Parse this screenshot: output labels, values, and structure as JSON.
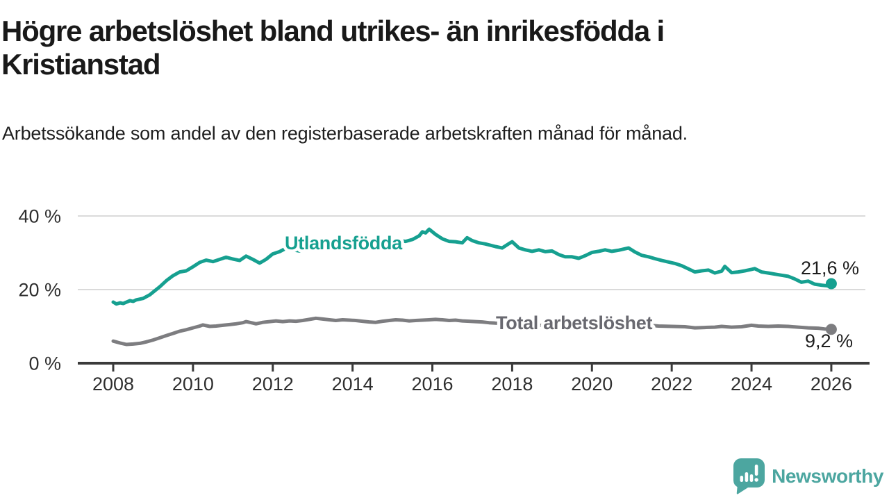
{
  "header": {
    "title": "Högre arbetslöshet bland utrikes- än inrikesfödda i Kristianstad",
    "subtitle": "Arbetssökande som andel av den registerbaserade arbetskraften månad för månad."
  },
  "chart_data": {
    "type": "line",
    "title": "Högre arbetslöshet bland utrikes- än inrikesfödda i Kristianstad",
    "subtitle": "Arbetssökande som andel av den registerbaserade arbetskraften månad för månad.",
    "xlabel": "",
    "ylabel": "",
    "x_unit": "decimal_year",
    "xlim": [
      2007.1,
      2027.0
    ],
    "ylim": [
      0,
      40
    ],
    "grid": "horizontal",
    "legend": "inline-labels-on-lines",
    "y_ticks": [
      {
        "value": 0,
        "label": "0 %"
      },
      {
        "value": 20,
        "label": "20 %"
      },
      {
        "value": 40,
        "label": "40 %"
      }
    ],
    "x_ticks": [
      {
        "value": 2008,
        "label": "2008"
      },
      {
        "value": 2010,
        "label": "2010"
      },
      {
        "value": 2012,
        "label": "2012"
      },
      {
        "value": 2014,
        "label": "2014"
      },
      {
        "value": 2016,
        "label": "2016"
      },
      {
        "value": 2018,
        "label": "2018"
      },
      {
        "value": 2020,
        "label": "2020"
      },
      {
        "value": 2022,
        "label": "2022"
      },
      {
        "value": 2024,
        "label": "2024"
      },
      {
        "value": 2026,
        "label": "2026"
      }
    ],
    "series": [
      {
        "name": "Utlandsfödda",
        "color": "#16A090",
        "label_color": "#16A090",
        "end_label": "21,6 %",
        "end_value": 21.6,
        "points": [
          [
            2008.0,
            16.6
          ],
          [
            2008.08,
            16.1
          ],
          [
            2008.17,
            16.4
          ],
          [
            2008.25,
            16.2
          ],
          [
            2008.42,
            17.0
          ],
          [
            2008.5,
            16.8
          ],
          [
            2008.58,
            17.2
          ],
          [
            2008.75,
            17.6
          ],
          [
            2008.92,
            18.6
          ],
          [
            2009.0,
            19.3
          ],
          [
            2009.17,
            20.8
          ],
          [
            2009.33,
            22.4
          ],
          [
            2009.5,
            23.8
          ],
          [
            2009.67,
            24.8
          ],
          [
            2009.83,
            25.1
          ],
          [
            2010.0,
            26.2
          ],
          [
            2010.17,
            27.4
          ],
          [
            2010.33,
            28.0
          ],
          [
            2010.5,
            27.6
          ],
          [
            2010.67,
            28.2
          ],
          [
            2010.83,
            28.8
          ],
          [
            2011.0,
            28.3
          ],
          [
            2011.17,
            27.9
          ],
          [
            2011.33,
            29.1
          ],
          [
            2011.5,
            28.2
          ],
          [
            2011.67,
            27.2
          ],
          [
            2011.83,
            28.2
          ],
          [
            2012.0,
            29.7
          ],
          [
            2012.17,
            30.3
          ],
          [
            2012.33,
            31.2
          ],
          [
            2012.5,
            30.8
          ],
          [
            2012.67,
            30.5
          ],
          [
            2012.83,
            30.9
          ],
          [
            2013.0,
            31.6
          ],
          [
            2013.17,
            31.0
          ],
          [
            2013.33,
            31.2
          ],
          [
            2013.5,
            31.4
          ],
          [
            2013.67,
            31.2
          ],
          [
            2013.83,
            31.7
          ],
          [
            2014.0,
            32.0
          ],
          [
            2014.17,
            32.4
          ],
          [
            2014.33,
            32.1
          ],
          [
            2014.5,
            31.9
          ],
          [
            2014.67,
            32.4
          ],
          [
            2014.83,
            32.7
          ],
          [
            2015.0,
            33.0
          ],
          [
            2015.17,
            33.3
          ],
          [
            2015.33,
            33.1
          ],
          [
            2015.5,
            33.6
          ],
          [
            2015.67,
            34.6
          ],
          [
            2015.75,
            35.7
          ],
          [
            2015.83,
            35.4
          ],
          [
            2015.92,
            36.4
          ],
          [
            2016.08,
            35.0
          ],
          [
            2016.25,
            33.8
          ],
          [
            2016.42,
            33.1
          ],
          [
            2016.58,
            33.0
          ],
          [
            2016.75,
            32.7
          ],
          [
            2016.87,
            34.1
          ],
          [
            2017.0,
            33.3
          ],
          [
            2017.17,
            32.7
          ],
          [
            2017.33,
            32.4
          ],
          [
            2017.58,
            31.7
          ],
          [
            2017.75,
            31.3
          ],
          [
            2017.92,
            32.5
          ],
          [
            2018.0,
            33.0
          ],
          [
            2018.17,
            31.3
          ],
          [
            2018.33,
            30.8
          ],
          [
            2018.5,
            30.4
          ],
          [
            2018.67,
            30.8
          ],
          [
            2018.83,
            30.3
          ],
          [
            2019.0,
            30.5
          ],
          [
            2019.17,
            29.5
          ],
          [
            2019.33,
            28.9
          ],
          [
            2019.5,
            28.9
          ],
          [
            2019.67,
            28.5
          ],
          [
            2019.83,
            29.2
          ],
          [
            2020.0,
            30.1
          ],
          [
            2020.17,
            30.4
          ],
          [
            2020.33,
            30.8
          ],
          [
            2020.5,
            30.4
          ],
          [
            2020.67,
            30.7
          ],
          [
            2020.83,
            31.1
          ],
          [
            2020.92,
            31.3
          ],
          [
            2021.08,
            30.2
          ],
          [
            2021.25,
            29.3
          ],
          [
            2021.42,
            28.9
          ],
          [
            2021.58,
            28.4
          ],
          [
            2021.75,
            27.9
          ],
          [
            2021.92,
            27.5
          ],
          [
            2022.08,
            27.1
          ],
          [
            2022.25,
            26.5
          ],
          [
            2022.42,
            25.6
          ],
          [
            2022.58,
            24.8
          ],
          [
            2022.75,
            25.1
          ],
          [
            2022.92,
            25.3
          ],
          [
            2023.08,
            24.5
          ],
          [
            2023.25,
            25.0
          ],
          [
            2023.33,
            26.3
          ],
          [
            2023.5,
            24.6
          ],
          [
            2023.67,
            24.8
          ],
          [
            2023.83,
            25.1
          ],
          [
            2024.0,
            25.5
          ],
          [
            2024.08,
            25.7
          ],
          [
            2024.25,
            24.8
          ],
          [
            2024.42,
            24.5
          ],
          [
            2024.58,
            24.2
          ],
          [
            2024.75,
            23.9
          ],
          [
            2024.92,
            23.6
          ],
          [
            2025.08,
            22.9
          ],
          [
            2025.25,
            22.0
          ],
          [
            2025.42,
            22.3
          ],
          [
            2025.58,
            21.5
          ],
          [
            2025.75,
            21.2
          ],
          [
            2025.92,
            21.0
          ],
          [
            2026.0,
            21.6
          ]
        ]
      },
      {
        "name": "Total arbetslöshet",
        "color": "#7D7D80",
        "label_color": "#696970",
        "end_label": "9,2 %",
        "end_value": 9.2,
        "points": [
          [
            2008.0,
            6.0
          ],
          [
            2008.17,
            5.5
          ],
          [
            2008.33,
            5.1
          ],
          [
            2008.5,
            5.2
          ],
          [
            2008.67,
            5.4
          ],
          [
            2008.83,
            5.8
          ],
          [
            2009.0,
            6.3
          ],
          [
            2009.17,
            6.9
          ],
          [
            2009.33,
            7.5
          ],
          [
            2009.5,
            8.1
          ],
          [
            2009.67,
            8.7
          ],
          [
            2009.83,
            9.1
          ],
          [
            2010.0,
            9.6
          ],
          [
            2010.17,
            10.1
          ],
          [
            2010.25,
            10.4
          ],
          [
            2010.42,
            10.0
          ],
          [
            2010.58,
            10.1
          ],
          [
            2010.75,
            10.3
          ],
          [
            2010.92,
            10.5
          ],
          [
            2011.08,
            10.7
          ],
          [
            2011.25,
            11.0
          ],
          [
            2011.33,
            11.3
          ],
          [
            2011.5,
            10.9
          ],
          [
            2011.58,
            10.7
          ],
          [
            2011.75,
            11.1
          ],
          [
            2011.92,
            11.3
          ],
          [
            2012.08,
            11.5
          ],
          [
            2012.25,
            11.3
          ],
          [
            2012.42,
            11.5
          ],
          [
            2012.58,
            11.4
          ],
          [
            2012.75,
            11.6
          ],
          [
            2012.92,
            11.9
          ],
          [
            2013.08,
            12.2
          ],
          [
            2013.25,
            12.0
          ],
          [
            2013.42,
            11.8
          ],
          [
            2013.58,
            11.6
          ],
          [
            2013.75,
            11.8
          ],
          [
            2013.92,
            11.7
          ],
          [
            2014.08,
            11.6
          ],
          [
            2014.25,
            11.4
          ],
          [
            2014.42,
            11.2
          ],
          [
            2014.58,
            11.1
          ],
          [
            2014.75,
            11.4
          ],
          [
            2014.92,
            11.6
          ],
          [
            2015.08,
            11.8
          ],
          [
            2015.25,
            11.7
          ],
          [
            2015.42,
            11.5
          ],
          [
            2015.58,
            11.6
          ],
          [
            2015.75,
            11.7
          ],
          [
            2015.92,
            11.8
          ],
          [
            2016.08,
            11.9
          ],
          [
            2016.25,
            11.8
          ],
          [
            2016.42,
            11.6
          ],
          [
            2016.58,
            11.7
          ],
          [
            2016.75,
            11.5
          ],
          [
            2016.92,
            11.4
          ],
          [
            2017.08,
            11.3
          ],
          [
            2017.25,
            11.2
          ],
          [
            2017.42,
            11.0
          ],
          [
            2017.58,
            10.9
          ],
          [
            2017.75,
            10.8
          ],
          [
            2018.0,
            10.7
          ],
          [
            2018.33,
            10.5
          ],
          [
            2018.67,
            10.3
          ],
          [
            2019.0,
            10.2
          ],
          [
            2019.33,
            10.0
          ],
          [
            2019.67,
            9.9
          ],
          [
            2020.0,
            10.4
          ],
          [
            2020.33,
            11.2
          ],
          [
            2020.67,
            11.0
          ],
          [
            2021.0,
            10.7
          ],
          [
            2021.33,
            10.4
          ],
          [
            2021.67,
            10.1
          ],
          [
            2022.0,
            10.0
          ],
          [
            2022.33,
            9.9
          ],
          [
            2022.58,
            9.6
          ],
          [
            2022.83,
            9.7
          ],
          [
            2023.08,
            9.8
          ],
          [
            2023.25,
            10.0
          ],
          [
            2023.5,
            9.8
          ],
          [
            2023.75,
            9.9
          ],
          [
            2024.0,
            10.3
          ],
          [
            2024.17,
            10.1
          ],
          [
            2024.42,
            10.0
          ],
          [
            2024.67,
            10.1
          ],
          [
            2024.92,
            10.0
          ],
          [
            2025.17,
            9.8
          ],
          [
            2025.42,
            9.6
          ],
          [
            2025.67,
            9.5
          ],
          [
            2025.83,
            9.3
          ],
          [
            2026.0,
            9.2
          ]
        ]
      }
    ]
  },
  "branding": {
    "name": "Newsworthy",
    "color": "#4CA6A0",
    "icon": "newsworthy-speech-bubble-bar-chart-icon"
  },
  "colors": {
    "accent_teal": "#16A090",
    "line_gray": "#7D7D80",
    "grid": "#DADADA",
    "axis": "#3A3A3A",
    "tick_text": "#2F2F2F",
    "value_text": "#1D1D1D",
    "background": "#FFFFFF"
  }
}
